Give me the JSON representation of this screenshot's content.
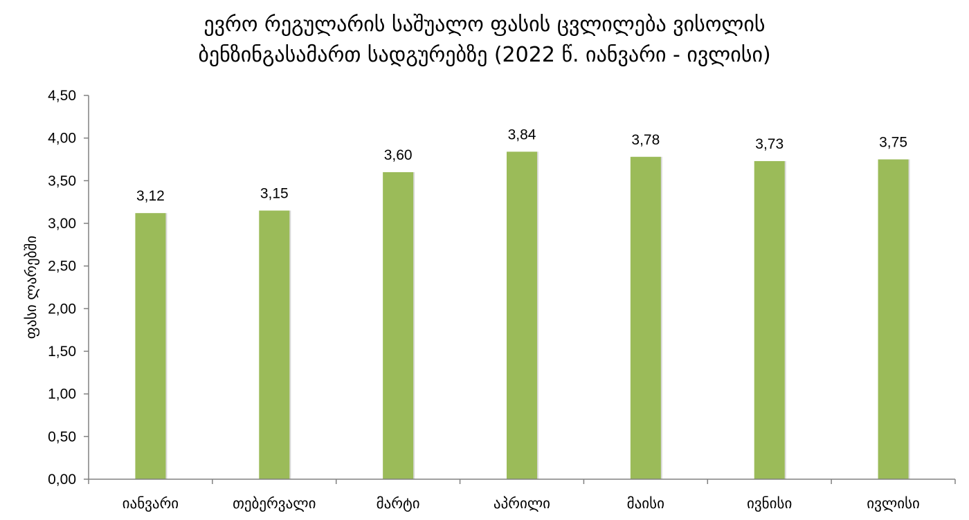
{
  "chart_data": {
    "type": "bar",
    "title_line1": "ევრო რეგულარის საშუალო ფასის ცვლილება ვისოლის",
    "title_line2": "ბენზინგასამართ სადგურებზე (2022 წ. იანვარი - ივლისი)",
    "xlabel": "",
    "ylabel": "ფასი ლარებში",
    "categories": [
      "იანვარი",
      "თებერვალი",
      "მარტი",
      "აპრილი",
      "მაისი",
      "ივნისი",
      "ივლისი"
    ],
    "values": [
      3.12,
      3.15,
      3.6,
      3.84,
      3.78,
      3.73,
      3.75
    ],
    "value_labels": [
      "3,12",
      "3,15",
      "3,60",
      "3,84",
      "3,78",
      "3,73",
      "3,75"
    ],
    "ylim": [
      0,
      4.5
    ],
    "y_ticks": [
      0,
      0.5,
      1,
      1.5,
      2,
      2.5,
      3,
      3.5,
      4,
      4.5
    ],
    "y_tick_labels": [
      "0,00",
      "0,50",
      "1,00",
      "1,50",
      "2,00",
      "2,50",
      "3,00",
      "3,50",
      "4,00",
      "4,50"
    ],
    "grid": false,
    "legend": "none",
    "bar_color": "#9BBB59",
    "axis_color": "#808080"
  }
}
